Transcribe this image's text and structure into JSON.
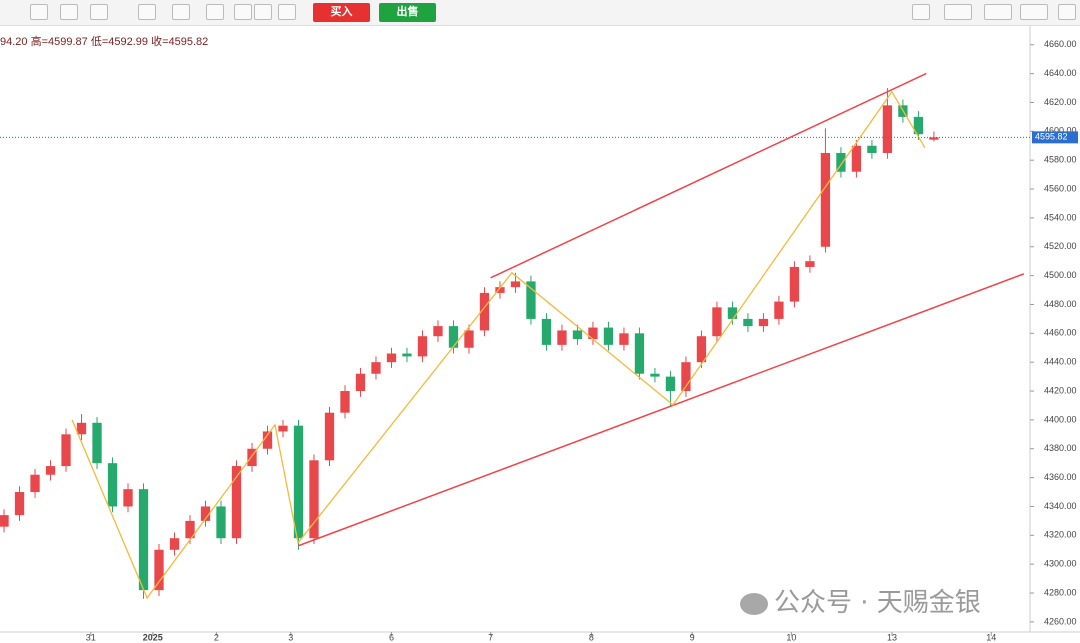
{
  "toolbar": {
    "buy": "买入",
    "sell": "出售"
  },
  "watermark": "公众号 · 天赐金银",
  "chart_data": {
    "type": "candlestick",
    "ohlc_text": "94.20 高=4599.87 低=4592.99 收=4595.82",
    "up_color": "#e8474c",
    "down_color": "#26a96c",
    "x": [
      0,
      1,
      2,
      3,
      4,
      5,
      6,
      7,
      8,
      9,
      10,
      11,
      12,
      13,
      14,
      15,
      16,
      17,
      18,
      19,
      20,
      21,
      22,
      23,
      24,
      25,
      26,
      27,
      28,
      29,
      30,
      31,
      32,
      33,
      34,
      35,
      36,
      37,
      38,
      39,
      40,
      41,
      42,
      43,
      44,
      45,
      46,
      47,
      48,
      49,
      50,
      51,
      52,
      53,
      54,
      55,
      56,
      57,
      58,
      59,
      60
    ],
    "open": [
      4326,
      4334,
      4350,
      4362,
      4368,
      4390,
      4398,
      4370,
      4340,
      4352,
      4282,
      4310,
      4318,
      4330,
      4340,
      4318,
      4368,
      4380,
      4392,
      4396,
      4318,
      4372,
      4405,
      4420,
      4432,
      4440,
      4446,
      4444,
      4458,
      4465,
      4450,
      4462,
      4488,
      4492,
      4496,
      4470,
      4452,
      4462,
      4456,
      4464,
      4452,
      4460,
      4432,
      4430,
      4420,
      4440,
      4458,
      4478,
      4470,
      4465,
      4470,
      4482,
      4506,
      4520,
      4585,
      4572,
      4590,
      4585,
      4618,
      4610,
      4594.2
    ],
    "high": [
      4338,
      4354,
      4366,
      4372,
      4394,
      4404,
      4402,
      4374,
      4356,
      4356,
      4314,
      4322,
      4334,
      4344,
      4344,
      4372,
      4384,
      4396,
      4400,
      4400,
      4376,
      4409,
      4424,
      4436,
      4444,
      4450,
      4450,
      4462,
      4469,
      4469,
      4466,
      4492,
      4496,
      4502,
      4500,
      4474,
      4466,
      4466,
      4468,
      4468,
      4464,
      4464,
      4436,
      4434,
      4444,
      4462,
      4482,
      4482,
      4474,
      4474,
      4486,
      4510,
      4514,
      4602,
      4589,
      4594,
      4594,
      4630,
      4622,
      4614,
      4599.87
    ],
    "low": [
      4322,
      4330,
      4346,
      4358,
      4364,
      4386,
      4366,
      4336,
      4336,
      4276,
      4278,
      4306,
      4314,
      4326,
      4314,
      4314,
      4364,
      4376,
      4388,
      4310,
      4314,
      4368,
      4401,
      4416,
      4428,
      4436,
      4440,
      4440,
      4454,
      4446,
      4446,
      4458,
      4484,
      4488,
      4466,
      4448,
      4448,
      4452,
      4452,
      4448,
      4448,
      4428,
      4426,
      4410,
      4416,
      4436,
      4454,
      4466,
      4461,
      4461,
      4466,
      4478,
      4502,
      4516,
      4568,
      4568,
      4581,
      4581,
      4606,
      4594,
      4592.99
    ],
    "close": [
      4334,
      4350,
      4362,
      4368,
      4390,
      4398,
      4370,
      4340,
      4352,
      4282,
      4310,
      4318,
      4330,
      4340,
      4318,
      4368,
      4380,
      4392,
      4396,
      4318,
      4372,
      4405,
      4420,
      4432,
      4440,
      4446,
      4444,
      4458,
      4465,
      4450,
      4462,
      4488,
      4492,
      4496,
      4470,
      4452,
      4462,
      4456,
      4464,
      4452,
      4460,
      4432,
      4430,
      4420,
      4440,
      4458,
      4478,
      4470,
      4465,
      4470,
      4482,
      4506,
      4510,
      4585,
      4572,
      4590,
      4585,
      4618,
      4610,
      4598,
      4595.82
    ],
    "xlim": [
      -0.26,
      66.2
    ],
    "ylim": [
      4253,
      4673
    ],
    "xticks": [
      {
        "value": 5.6,
        "label": "31"
      },
      {
        "value": 9.6,
        "label": "2025"
      },
      {
        "value": 13.7,
        "label": "2"
      },
      {
        "value": 18.5,
        "label": "3"
      },
      {
        "value": 25,
        "label": "6"
      },
      {
        "value": 31.4,
        "label": "7"
      },
      {
        "value": 37.9,
        "label": "8"
      },
      {
        "value": 44.4,
        "label": "9"
      },
      {
        "value": 50.8,
        "label": "10"
      },
      {
        "value": 57.3,
        "label": "13"
      },
      {
        "value": 63.7,
        "label": "14"
      }
    ],
    "yticks": [
      {
        "value": 4260,
        "label": "4260.00"
      },
      {
        "value": 4280,
        "label": "4280.00"
      },
      {
        "value": 4300,
        "label": "4300.00"
      },
      {
        "value": 4320,
        "label": "4320.00"
      },
      {
        "value": 4340,
        "label": "4340.00"
      },
      {
        "value": 4360,
        "label": "4360.00"
      },
      {
        "value": 4380,
        "label": "4380.00"
      },
      {
        "value": 4400,
        "label": "4400.00"
      },
      {
        "value": 4420,
        "label": "4420.00"
      },
      {
        "value": 4440,
        "label": "4440.00"
      },
      {
        "value": 4460,
        "label": "4460.00"
      },
      {
        "value": 4480,
        "label": "4480.00"
      },
      {
        "value": 4500,
        "label": "4500.00"
      },
      {
        "value": 4520,
        "label": "4520.00"
      },
      {
        "value": 4540,
        "label": "4540.00"
      },
      {
        "value": 4560,
        "label": "4560.00"
      },
      {
        "value": 4580,
        "label": "4580.00"
      },
      {
        "value": 4600,
        "label": "4600.00"
      },
      {
        "value": 4620,
        "label": "4620.00"
      },
      {
        "value": 4640,
        "label": "4640.00"
      },
      {
        "value": 4660,
        "label": "4660.00"
      }
    ],
    "grid": false,
    "channel_color": "#f0434a",
    "channel": [
      {
        "x": [
          31.4,
          59.5
        ],
        "y": [
          4498.5,
          4640
        ]
      },
      {
        "x": [
          18.97,
          65.8
        ],
        "y": [
          4312.7,
          4501.2
        ]
      }
    ],
    "zigzag_color": "#f5b939",
    "zigzag": {
      "x": [
        4.39,
        9.23,
        17.48,
        18.97,
        32.77,
        43.16,
        57.29,
        59.42
      ],
      "y": [
        4400,
        4276.6,
        4396.6,
        4314.8,
        4502,
        4410.4,
        4627.4,
        4588.6
      ]
    },
    "price_line_color": "#2a6fcf"
  }
}
